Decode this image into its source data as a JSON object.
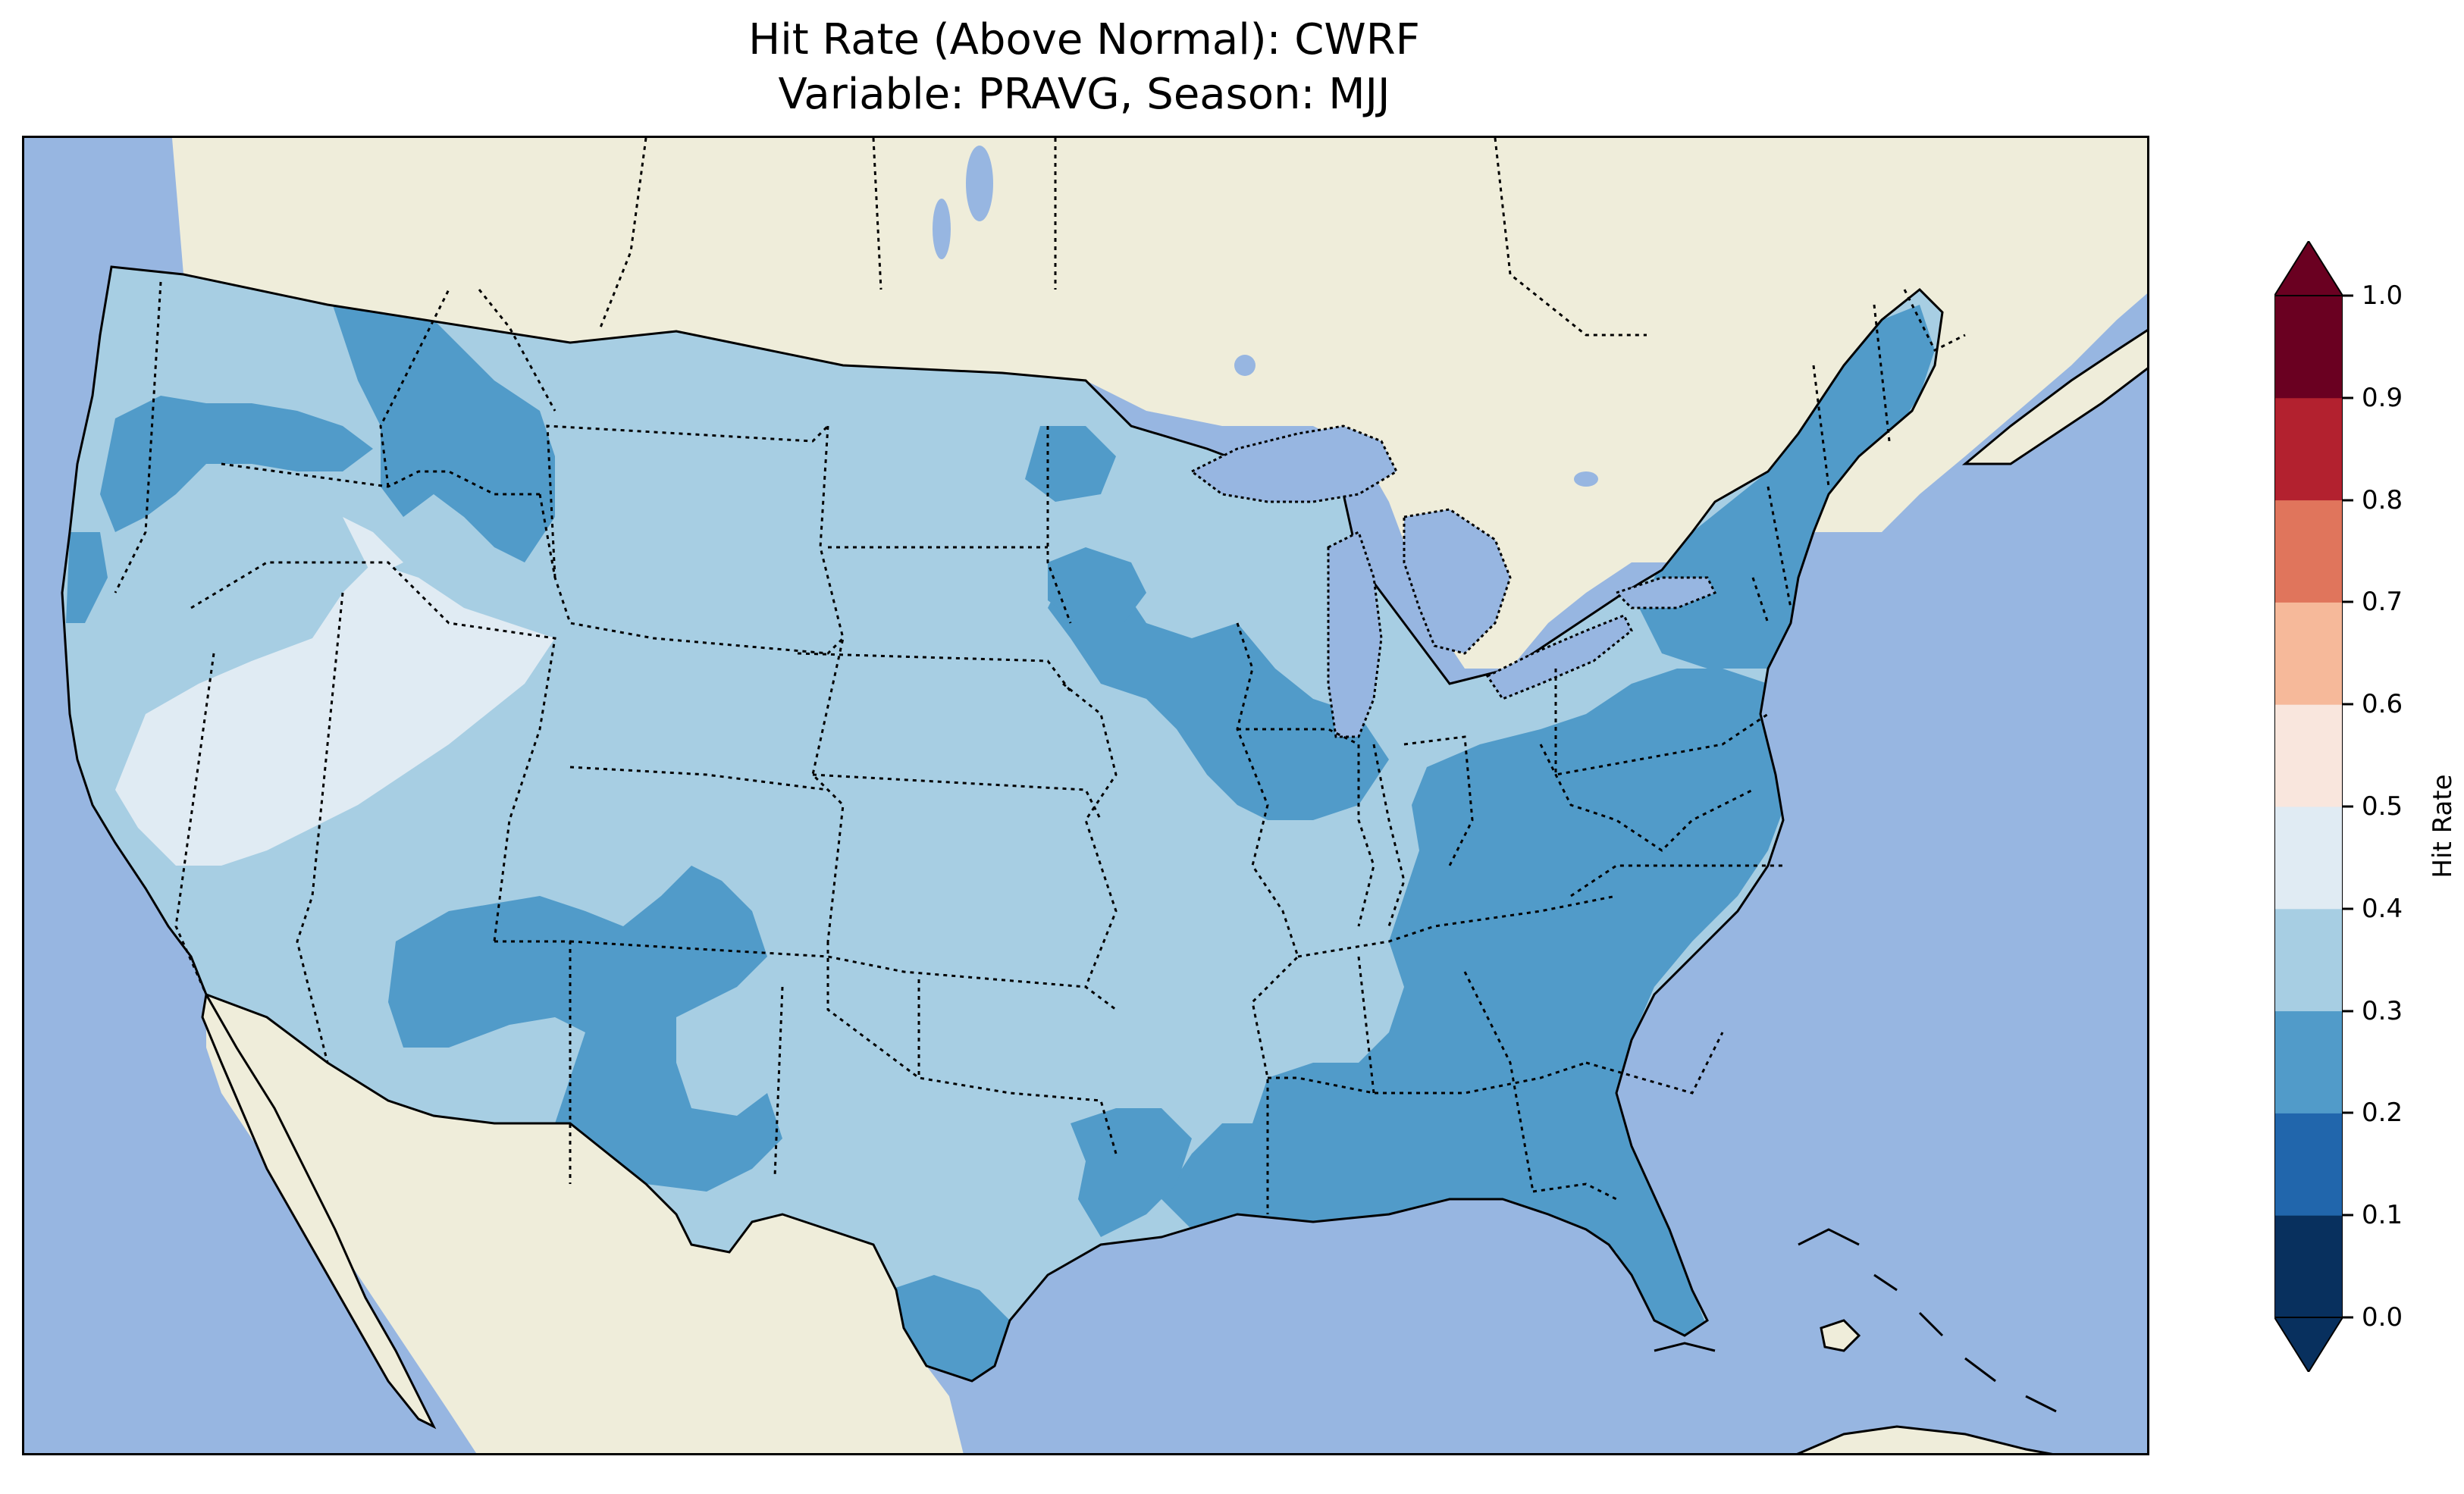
{
  "title": {
    "line1": "Hit Rate (Above Normal): CWRF",
    "line2": "Variable: PRAVG, Season: MJJ"
  },
  "map": {
    "ocean_color": "#97b6e1",
    "land_color": "#efedda",
    "lake_color": "#97b6e1",
    "coastline_color": "#000000",
    "state_border_style": "dotted",
    "features": [
      "coastline",
      "state borders",
      "country borders",
      "Great Lakes",
      "lakes"
    ]
  },
  "regions": [
    {
      "id": "west-coast",
      "class": "0.3-0.4"
    },
    {
      "id": "intermountain-west",
      "class": "0.4-0.5"
    },
    {
      "id": "north-rockies",
      "class": "0.2-0.3"
    },
    {
      "id": "four-corners",
      "class": "0.2-0.3"
    },
    {
      "id": "great-plains",
      "class": "0.3-0.4"
    },
    {
      "id": "upper-midwest",
      "class": "0.2-0.3"
    },
    {
      "id": "southeast",
      "class": "0.2-0.3"
    },
    {
      "id": "northeast",
      "class": "0.2-0.3"
    },
    {
      "id": "south-texas",
      "class": "0.2-0.3"
    }
  ],
  "colorbar": {
    "label": "Hit Rate",
    "ticks": [
      "0.0",
      "0.1",
      "0.2",
      "0.3",
      "0.4",
      "0.5",
      "0.6",
      "0.7",
      "0.8",
      "0.9",
      "1.0"
    ],
    "colors": [
      "#053061",
      "#2166ac",
      "#4393c3",
      "#92c5de",
      "#d1e5f0",
      "#f7f7f7",
      "#fddbc7",
      "#f4a582",
      "#d6604d",
      "#b2182b",
      "#67001f"
    ],
    "bins": [
      {
        "range": "0.0-0.1",
        "color": "#08305e"
      },
      {
        "range": "0.1-0.2",
        "color": "#2166ac"
      },
      {
        "range": "0.2-0.3",
        "color": "#519bc9"
      },
      {
        "range": "0.3-0.4",
        "color": "#a7cee3"
      },
      {
        "range": "0.4-0.5",
        "color": "#e0ebf3"
      },
      {
        "range": "0.5-0.6",
        "color": "#f9e6dd"
      },
      {
        "range": "0.6-0.7",
        "color": "#f6b99a"
      },
      {
        "range": "0.7-0.8",
        "color": "#e0755c"
      },
      {
        "range": "0.8-0.9",
        "color": "#b3212f"
      },
      {
        "range": "0.9-1.0",
        "color": "#6a0021"
      }
    ],
    "under_color": "#08305e",
    "over_color": "#6a0021",
    "extend": "both"
  }
}
